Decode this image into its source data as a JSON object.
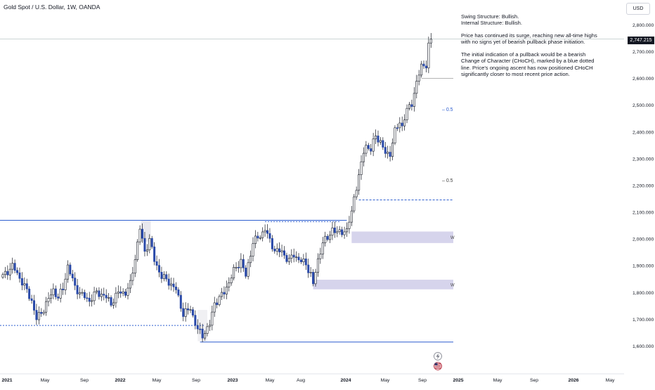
{
  "header": {
    "title": "Gold Spot / U.S. Dollar, 1W, OANDA",
    "currency": "USD"
  },
  "annotations": {
    "structure_lines": [
      "Swing Structure: Bullish.",
      "Internal Structure: Bullish."
    ],
    "paragraph1": "Price has continued its surge, reaching new all-time highs with no signs yet of bearish pullback phase initiation.",
    "paragraph2": "The initial indication of a pullback would be a bearish Change of Character (CHoCH), marked by a blue dotted line. Price's ongoing ascent has now positioned CHoCH significantly closer to most recent price action."
  },
  "colors": {
    "up": "#131722",
    "down": "#2848a8",
    "zone": "#d6d4ec",
    "level_line": "#2f5fd0",
    "grid_text": "#131722"
  },
  "icons": [
    "lightning-icon",
    "us-flag-icon"
  ],
  "chart_data": {
    "type": "candlestick",
    "title": "Gold Spot / U.S. Dollar, 1W, OANDA",
    "ylim": [
      1560,
      2860
    ],
    "y_ticks": [
      1600,
      1700,
      1800,
      1900,
      2000,
      2100,
      2200,
      2300,
      2400,
      2500,
      2600,
      2700,
      2800
    ],
    "y_tick_labels": [
      "1,600.000",
      "1,700.000",
      "1,800.000",
      "1,900.000",
      "2,000.000",
      "2,100.000",
      "2,200.000",
      "2,300.000",
      "2,400.000",
      "2,500.000",
      "2,600.000",
      "2,700.000",
      "2,800.000"
    ],
    "x_ticks": [
      "2021",
      "May",
      "Sep",
      "2022",
      "May",
      "Sep",
      "2023",
      "May",
      "Aug",
      "2024",
      "May",
      "Sep",
      "2025",
      "May",
      "Sep",
      "2026",
      "May"
    ],
    "last_price": 2747.215,
    "last_price_label": "2,747.215",
    "fib_labels": [
      "0.5",
      "0.5"
    ],
    "fib_levels": [
      2485,
      2220
    ],
    "levels": [
      {
        "label": "solid-resistance",
        "price": 2070
      },
      {
        "label": "dotted-2023-high",
        "price": 2065
      },
      {
        "label": "dotted-2021-low",
        "price": 1677
      },
      {
        "label": "solid-2022-low",
        "price": 1615
      },
      {
        "label": "dotted-choch",
        "price": 2146
      },
      {
        "label": "dotted-2024-low",
        "price": 2600
      }
    ],
    "zones": [
      {
        "label": "W",
        "low": 1985,
        "high": 2028
      },
      {
        "label": "W",
        "low": 1812,
        "high": 1848
      }
    ],
    "anchors": [
      {
        "x": 0,
        "y": 1860
      },
      {
        "x": 4,
        "y": 1900
      },
      {
        "x": 8,
        "y": 1840
      },
      {
        "x": 12,
        "y": 1770
      },
      {
        "x": 14,
        "y": 1700
      },
      {
        "x": 17,
        "y": 1740
      },
      {
        "x": 21,
        "y": 1810
      },
      {
        "x": 23,
        "y": 1780
      },
      {
        "x": 25,
        "y": 1815
      },
      {
        "x": 27,
        "y": 1900
      },
      {
        "x": 30,
        "y": 1820
      },
      {
        "x": 33,
        "y": 1790
      },
      {
        "x": 36,
        "y": 1770
      },
      {
        "x": 39,
        "y": 1800
      },
      {
        "x": 42,
        "y": 1790
      },
      {
        "x": 45,
        "y": 1760
      },
      {
        "x": 48,
        "y": 1800
      },
      {
        "x": 51,
        "y": 1800
      },
      {
        "x": 53,
        "y": 1830
      },
      {
        "x": 55,
        "y": 1930
      },
      {
        "x": 57,
        "y": 2040
      },
      {
        "x": 59,
        "y": 1950
      },
      {
        "x": 61,
        "y": 2000
      },
      {
        "x": 63,
        "y": 1920
      },
      {
        "x": 66,
        "y": 1860
      },
      {
        "x": 69,
        "y": 1840
      },
      {
        "x": 72,
        "y": 1810
      },
      {
        "x": 75,
        "y": 1720
      },
      {
        "x": 78,
        "y": 1740
      },
      {
        "x": 81,
        "y": 1660
      },
      {
        "x": 83,
        "y": 1640
      },
      {
        "x": 86,
        "y": 1680
      },
      {
        "x": 88,
        "y": 1760
      },
      {
        "x": 92,
        "y": 1800
      },
      {
        "x": 96,
        "y": 1880
      },
      {
        "x": 99,
        "y": 1920
      },
      {
        "x": 101,
        "y": 1860
      },
      {
        "x": 104,
        "y": 1990
      },
      {
        "x": 107,
        "y": 2010
      },
      {
        "x": 109,
        "y": 2040
      },
      {
        "x": 111,
        "y": 1990
      },
      {
        "x": 113,
        "y": 1960
      },
      {
        "x": 116,
        "y": 1950
      },
      {
        "x": 119,
        "y": 1920
      },
      {
        "x": 121,
        "y": 1940
      },
      {
        "x": 123,
        "y": 1925
      },
      {
        "x": 126,
        "y": 1905
      },
      {
        "x": 128,
        "y": 1870
      },
      {
        "x": 129,
        "y": 1830
      },
      {
        "x": 131,
        "y": 1920
      },
      {
        "x": 133,
        "y": 1990
      },
      {
        "x": 135,
        "y": 2000
      },
      {
        "x": 137,
        "y": 2040
      },
      {
        "x": 139,
        "y": 2020
      },
      {
        "x": 141,
        "y": 2030
      },
      {
        "x": 143,
        "y": 2030
      },
      {
        "x": 145,
        "y": 2100
      },
      {
        "x": 146,
        "y": 2160
      },
      {
        "x": 148,
        "y": 2230
      },
      {
        "x": 150,
        "y": 2330
      },
      {
        "x": 151,
        "y": 2350
      },
      {
        "x": 153,
        "y": 2330
      },
      {
        "x": 155,
        "y": 2390
      },
      {
        "x": 157,
        "y": 2360
      },
      {
        "x": 159,
        "y": 2320
      },
      {
        "x": 161,
        "y": 2320
      },
      {
        "x": 163,
        "y": 2400
      },
      {
        "x": 165,
        "y": 2440
      },
      {
        "x": 166,
        "y": 2420
      },
      {
        "x": 168,
        "y": 2480
      },
      {
        "x": 170,
        "y": 2510
      },
      {
        "x": 172,
        "y": 2580
      },
      {
        "x": 174,
        "y": 2650
      },
      {
        "x": 176,
        "y": 2650
      },
      {
        "x": 177,
        "y": 2720
      },
      {
        "x": 178,
        "y": 2747
      }
    ]
  }
}
